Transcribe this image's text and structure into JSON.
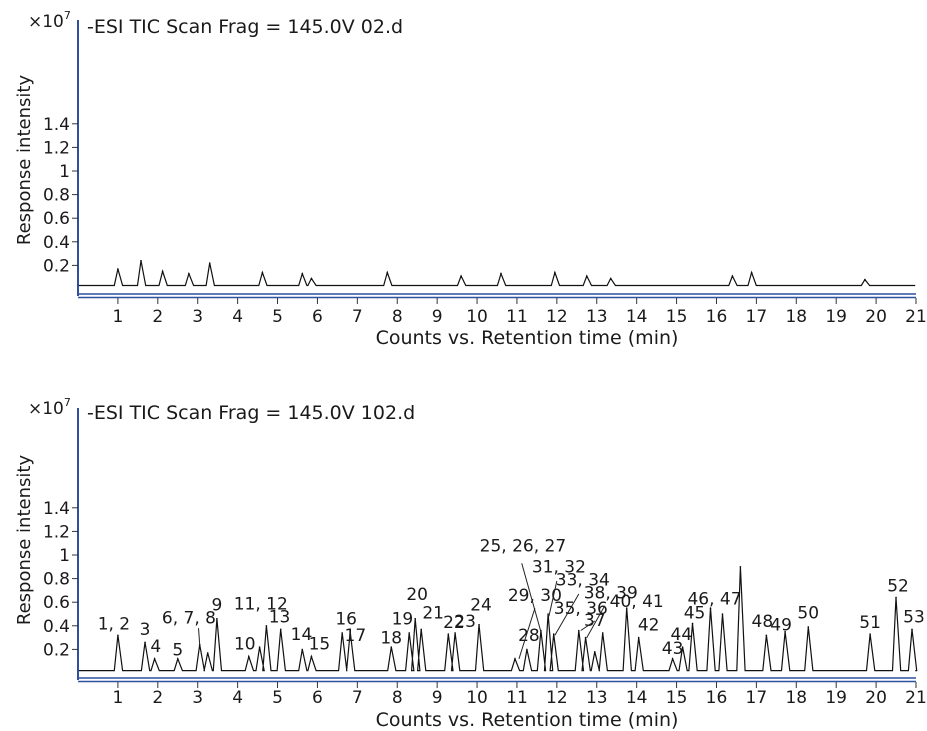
{
  "colors": {
    "axis": "#2f4fa0",
    "trace": "#111111",
    "text": "#1a1a1a"
  },
  "chart_data": [
    {
      "type": "line",
      "title": "-ESI TIC Scan Frag = 145.0V 02.d",
      "xlabel": "Counts vs. Retention time (min)",
      "ylabel": "Response intensity",
      "y_multiplier": "×10",
      "y_multiplier_exp": "7",
      "xlim": [
        0,
        21
      ],
      "ylim": [
        0,
        1.5
      ],
      "x_ticks": [
        1,
        2,
        3,
        4,
        5,
        6,
        7,
        8,
        9,
        10,
        11,
        12,
        13,
        14,
        15,
        16,
        17,
        18,
        19,
        20,
        21
      ],
      "y_ticks": [
        0.2,
        0.4,
        0.6,
        0.8,
        1,
        1.2,
        1.4
      ],
      "y_tick_labels": [
        "0.2",
        "0.4",
        "0.6",
        "0.8",
        "1",
        "1.2",
        "1.4"
      ],
      "baseline": 0.03,
      "peaks": [
        {
          "x": 1.0,
          "y": 0.17
        },
        {
          "x": 1.58,
          "y": 0.24
        },
        {
          "x": 2.12,
          "y": 0.15
        },
        {
          "x": 2.78,
          "y": 0.13
        },
        {
          "x": 3.3,
          "y": 0.22
        },
        {
          "x": 4.62,
          "y": 0.14
        },
        {
          "x": 5.62,
          "y": 0.13
        },
        {
          "x": 5.85,
          "y": 0.09
        },
        {
          "x": 7.75,
          "y": 0.14
        },
        {
          "x": 9.6,
          "y": 0.11
        },
        {
          "x": 10.6,
          "y": 0.13
        },
        {
          "x": 11.95,
          "y": 0.14
        },
        {
          "x": 12.75,
          "y": 0.11
        },
        {
          "x": 13.35,
          "y": 0.09
        },
        {
          "x": 16.4,
          "y": 0.11
        },
        {
          "x": 16.88,
          "y": 0.14
        },
        {
          "x": 19.72,
          "y": 0.08
        }
      ]
    },
    {
      "type": "line",
      "title": "-ESI TIC Scan Frag = 145.0V 102.d",
      "xlabel": "Counts vs. Retention time (min)",
      "ylabel": "Response intensity",
      "y_multiplier": "×10",
      "y_multiplier_exp": "7",
      "xlim": [
        0,
        21
      ],
      "ylim": [
        0,
        1.5
      ],
      "x_ticks": [
        1,
        2,
        3,
        4,
        5,
        6,
        7,
        8,
        9,
        10,
        11,
        12,
        13,
        14,
        15,
        16,
        17,
        18,
        19,
        20,
        21
      ],
      "y_ticks": [
        0.2,
        0.4,
        0.6,
        0.8,
        1,
        1.2,
        1.4
      ],
      "y_tick_labels": [
        "0.2",
        "0.4",
        "0.6",
        "0.8",
        "1",
        "1.2",
        "1.4"
      ],
      "baseline": 0.02,
      "peaks": [
        {
          "x": 1.0,
          "y": 0.32
        },
        {
          "x": 1.68,
          "y": 0.26
        },
        {
          "x": 1.92,
          "y": 0.12
        },
        {
          "x": 2.5,
          "y": 0.12
        },
        {
          "x": 3.05,
          "y": 0.24
        },
        {
          "x": 3.25,
          "y": 0.17
        },
        {
          "x": 3.48,
          "y": 0.46
        },
        {
          "x": 4.28,
          "y": 0.14
        },
        {
          "x": 4.55,
          "y": 0.22
        },
        {
          "x": 4.72,
          "y": 0.4
        },
        {
          "x": 5.08,
          "y": 0.37
        },
        {
          "x": 5.62,
          "y": 0.2
        },
        {
          "x": 5.85,
          "y": 0.14
        },
        {
          "x": 6.62,
          "y": 0.34
        },
        {
          "x": 6.82,
          "y": 0.35
        },
        {
          "x": 7.85,
          "y": 0.22
        },
        {
          "x": 8.3,
          "y": 0.34
        },
        {
          "x": 8.45,
          "y": 0.46
        },
        {
          "x": 8.6,
          "y": 0.37
        },
        {
          "x": 9.28,
          "y": 0.33
        },
        {
          "x": 9.45,
          "y": 0.34
        },
        {
          "x": 10.05,
          "y": 0.41
        },
        {
          "x": 10.95,
          "y": 0.12
        },
        {
          "x": 11.25,
          "y": 0.2
        },
        {
          "x": 11.6,
          "y": 0.36
        },
        {
          "x": 11.78,
          "y": 0.5
        },
        {
          "x": 11.92,
          "y": 0.33
        },
        {
          "x": 12.55,
          "y": 0.36
        },
        {
          "x": 12.72,
          "y": 0.3
        },
        {
          "x": 12.95,
          "y": 0.18
        },
        {
          "x": 13.15,
          "y": 0.34
        },
        {
          "x": 13.75,
          "y": 0.55
        },
        {
          "x": 14.05,
          "y": 0.3
        },
        {
          "x": 14.9,
          "y": 0.12
        },
        {
          "x": 15.15,
          "y": 0.22
        },
        {
          "x": 15.4,
          "y": 0.42
        },
        {
          "x": 15.85,
          "y": 0.55
        },
        {
          "x": 16.15,
          "y": 0.5
        },
        {
          "x": 16.6,
          "y": 0.9
        },
        {
          "x": 17.25,
          "y": 0.32
        },
        {
          "x": 17.72,
          "y": 0.35
        },
        {
          "x": 18.3,
          "y": 0.39
        },
        {
          "x": 19.85,
          "y": 0.33
        },
        {
          "x": 20.5,
          "y": 0.64
        },
        {
          "x": 20.9,
          "y": 0.37
        }
      ],
      "annotations": [
        {
          "text": "1, 2",
          "x": 0.9,
          "y": 0.37
        },
        {
          "text": "3",
          "x": 1.68,
          "y": 0.32
        },
        {
          "text": "4",
          "x": 1.95,
          "y": 0.18
        },
        {
          "text": "5",
          "x": 2.5,
          "y": 0.15
        },
        {
          "text": "6, 7, 8",
          "x": 2.78,
          "y": 0.42
        },
        {
          "text": "9",
          "x": 3.48,
          "y": 0.53
        },
        {
          "text": "10",
          "x": 4.18,
          "y": 0.2
        },
        {
          "text": "11, 12",
          "x": 4.58,
          "y": 0.54
        },
        {
          "text": "13",
          "x": 5.05,
          "y": 0.43
        },
        {
          "text": "14",
          "x": 5.6,
          "y": 0.28
        },
        {
          "text": "15",
          "x": 6.05,
          "y": 0.2
        },
        {
          "text": "16",
          "x": 6.72,
          "y": 0.41
        },
        {
          "text": "17",
          "x": 6.95,
          "y": 0.27
        },
        {
          "text": "18",
          "x": 7.85,
          "y": 0.25
        },
        {
          "text": "19",
          "x": 8.13,
          "y": 0.41
        },
        {
          "text": "20",
          "x": 8.5,
          "y": 0.62
        },
        {
          "text": "21",
          "x": 8.9,
          "y": 0.46
        },
        {
          "text": "22",
          "x": 9.42,
          "y": 0.38
        },
        {
          "text": "23",
          "x": 9.7,
          "y": 0.39
        },
        {
          "text": "24",
          "x": 10.1,
          "y": 0.53
        },
        {
          "text": "25, 26, 27",
          "x": 11.15,
          "y": 1.03
        },
        {
          "text": "28",
          "x": 11.3,
          "y": 0.27
        },
        {
          "text": "29, 30",
          "x": 11.45,
          "y": 0.61
        },
        {
          "text": "31, 32",
          "x": 12.05,
          "y": 0.85
        },
        {
          "text": "33, 34",
          "x": 12.65,
          "y": 0.74
        },
        {
          "text": "35, 36",
          "x": 12.6,
          "y": 0.5
        },
        {
          "text": "37",
          "x": 12.95,
          "y": 0.4
        },
        {
          "text": "38, 39",
          "x": 13.35,
          "y": 0.63
        },
        {
          "text": "40, 41",
          "x": 14.0,
          "y": 0.56
        },
        {
          "text": "42",
          "x": 14.3,
          "y": 0.36
        },
        {
          "text": "43",
          "x": 14.9,
          "y": 0.16
        },
        {
          "text": "44",
          "x": 15.12,
          "y": 0.28
        },
        {
          "text": "45",
          "x": 15.45,
          "y": 0.46
        },
        {
          "text": "46, 47",
          "x": 15.95,
          "y": 0.58
        },
        {
          "text": "48",
          "x": 17.15,
          "y": 0.39
        },
        {
          "text": "49",
          "x": 17.62,
          "y": 0.36
        },
        {
          "text": "50",
          "x": 18.3,
          "y": 0.46
        },
        {
          "text": "51",
          "x": 19.85,
          "y": 0.38
        },
        {
          "text": "52",
          "x": 20.55,
          "y": 0.69
        },
        {
          "text": "53",
          "x": 20.95,
          "y": 0.43
        }
      ],
      "leaders": [
        {
          "from": [
            11.12,
            0.93
          ],
          "to": [
            11.6,
            0.35
          ]
        },
        {
          "from": [
            11.45,
            0.55
          ],
          "to": [
            11.05,
            0.12
          ]
        },
        {
          "from": [
            12.0,
            0.78
          ],
          "to": [
            11.8,
            0.48
          ]
        },
        {
          "from": [
            12.55,
            0.67
          ],
          "to": [
            11.95,
            0.32
          ]
        },
        {
          "from": [
            13.2,
            0.57
          ],
          "to": [
            12.75,
            0.3
          ]
        },
        {
          "from": [
            12.95,
            0.44
          ],
          "to": [
            12.6,
            0.36
          ]
        },
        {
          "from": [
            3.02,
            0.38
          ],
          "to": [
            3.05,
            0.24
          ]
        }
      ]
    }
  ]
}
